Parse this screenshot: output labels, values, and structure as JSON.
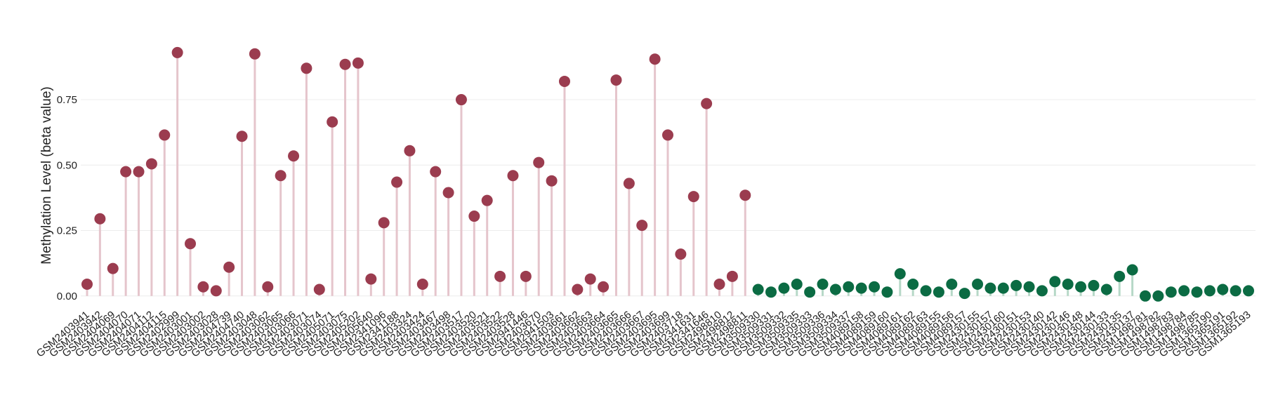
{
  "chart_data": {
    "type": "lollipop",
    "y_label": "Methylation Level (beta value)",
    "categories": [
      "GSM2403941",
      "GSM2403942",
      "GSM2404069",
      "GSM2404070",
      "GSM2404071",
      "GSM2404112",
      "GSM2404115",
      "GSM2402999",
      "GSM2403001",
      "GSM2403002",
      "GSM2403028",
      "GSM2404739",
      "GSM2404740",
      "GSM2403048",
      "GSM2403062",
      "GSM2403065",
      "GSM2403066",
      "GSM2403071",
      "GSM2403074",
      "GSM2405071",
      "GSM2403075",
      "GSM2405202",
      "GSM2405640",
      "GSM2341096",
      "GSM2341188",
      "GSM2403324",
      "GSM2403424",
      "GSM2403467",
      "GSM2403498",
      "GSM2403517",
      "GSM2403520",
      "GSM2403521",
      "GSM2403522",
      "GSM2403528",
      "GSM2941446",
      "GSM2403670",
      "GSM2941503",
      "GSM2403661",
      "GSM2403662",
      "GSM2403663",
      "GSM2403664",
      "GSM2403665",
      "GSM2403666",
      "GSM2403667",
      "GSM2403695",
      "GSM2403699",
      "GSM2403718",
      "GSM2341631",
      "GSM2341646",
      "GSM2498810",
      "GSM2498812",
      "GSM2498811",
      "GSM3509330",
      "GSM3509331",
      "GSM3509332",
      "GSM3509335",
      "GSM3509333",
      "GSM3509336",
      "GSM3509334",
      "GSM3509337",
      "GSM4089158",
      "GSM4089159",
      "GSM4089160",
      "GSM4089161",
      "GSM4089162",
      "GSM4089163",
      "GSM4089155",
      "GSM4089156",
      "GSM4089157",
      "GSM2430155",
      "GSM2430157",
      "GSM2430160",
      "GSM2430151",
      "GSM2430153",
      "GSM2430140",
      "GSM2430142",
      "GSM2430146",
      "GSM2430148",
      "GSM2430144",
      "GSM2430133",
      "GSM2430135",
      "GSM2430137",
      "GSM1498781",
      "GSM1498782",
      "GSM1498783",
      "GSM1498784",
      "GSM1498785",
      "GSM1365190",
      "GSM1365191",
      "GSM1365192",
      "GSM1365193"
    ],
    "series": [
      {
        "color": "#9b3c4f",
        "stem_color": "#e5c5cc",
        "values": [
          0.045,
          0.295,
          0.105,
          0.475,
          0.475,
          0.505,
          0.615,
          0.93,
          0.2,
          0.035,
          0.02,
          0.11,
          0.61,
          0.925,
          0.035,
          0.46,
          0.535,
          0.87,
          0.025,
          0.665,
          0.885,
          0.89,
          0.065,
          0.28,
          0.435,
          0.555,
          0.045,
          0.475,
          0.395,
          0.75,
          0.305,
          0.365,
          0.075,
          0.46,
          0.075,
          0.51,
          0.44,
          0.82,
          0.025,
          0.065,
          0.035,
          0.825,
          0.43,
          0.27,
          0.905,
          0.615,
          0.16,
          0.38,
          0.735,
          0.045,
          0.075,
          0.385,
          null,
          null,
          null,
          null,
          null,
          null,
          null,
          null,
          null,
          null,
          null,
          null,
          null,
          null,
          null,
          null,
          null,
          null,
          null,
          null,
          null,
          null,
          null,
          null,
          null,
          null,
          null,
          null,
          null,
          null,
          null,
          null,
          null,
          null,
          null,
          null,
          null,
          null,
          null
        ]
      },
      {
        "color": "#0b6b43",
        "stem_color": "#b6d8c7",
        "values": [
          null,
          null,
          null,
          null,
          null,
          null,
          null,
          null,
          null,
          null,
          null,
          null,
          null,
          null,
          null,
          null,
          null,
          null,
          null,
          null,
          null,
          null,
          null,
          null,
          null,
          null,
          null,
          null,
          null,
          null,
          null,
          null,
          null,
          null,
          null,
          null,
          null,
          null,
          null,
          null,
          null,
          null,
          null,
          null,
          null,
          null,
          null,
          null,
          null,
          null,
          null,
          null,
          0.025,
          0.015,
          0.03,
          0.045,
          0.015,
          0.045,
          0.025,
          0.035,
          0.03,
          0.035,
          0.015,
          0.085,
          0.045,
          0.02,
          0.015,
          0.045,
          0.01,
          0.045,
          0.03,
          0.03,
          0.04,
          0.035,
          0.02,
          0.055,
          0.045,
          0.035,
          0.04,
          0.025,
          0.075,
          0.1,
          0.0,
          0.0,
          0.015,
          0.02,
          0.015,
          0.02,
          0.025,
          0.02,
          0.02
        ]
      }
    ],
    "ylim": [
      -0.03,
      0.97
    ],
    "yticks": [
      {
        "value": 0,
        "label": "0.00"
      },
      0.25,
      {
        "value": 0.5,
        "label": "0.50"
      },
      0.75
    ],
    "grid": true
  }
}
